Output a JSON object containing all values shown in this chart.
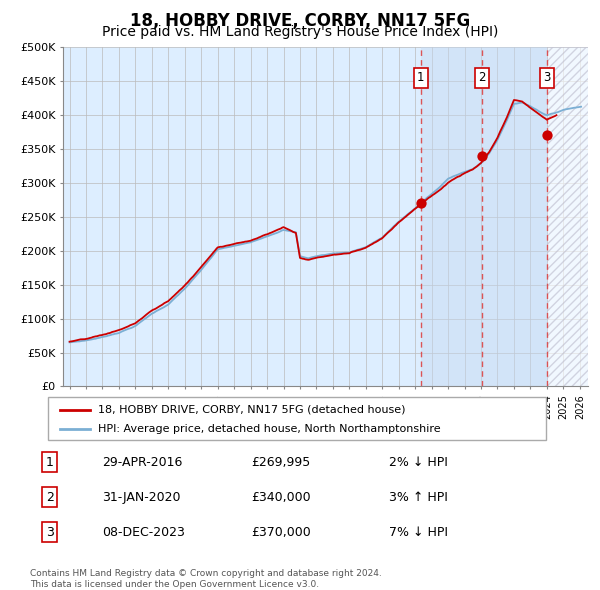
{
  "title": "18, HOBBY DRIVE, CORBY, NN17 5FG",
  "subtitle": "Price paid vs. HM Land Registry's House Price Index (HPI)",
  "title_fontsize": 12,
  "subtitle_fontsize": 10,
  "ylim": [
    0,
    500000
  ],
  "yticks": [
    0,
    50000,
    100000,
    150000,
    200000,
    250000,
    300000,
    350000,
    400000,
    450000,
    500000
  ],
  "ytick_labels": [
    "£0",
    "£50K",
    "£100K",
    "£150K",
    "£200K",
    "£250K",
    "£300K",
    "£350K",
    "£400K",
    "£450K",
    "£500K"
  ],
  "x_start_year": 1995,
  "x_end_year": 2026,
  "hpi_color": "#7bafd4",
  "price_color": "#cc0000",
  "purchase_prices": [
    269995,
    340000,
    370000
  ],
  "purchase_labels": [
    "1",
    "2",
    "3"
  ],
  "purchase_year_decimals": [
    2016.33,
    2020.08,
    2024.0
  ],
  "legend_label_price": "18, HOBBY DRIVE, CORBY, NN17 5FG (detached house)",
  "legend_label_hpi": "HPI: Average price, detached house, North Northamptonshire",
  "table_data": [
    [
      "1",
      "29-APR-2016",
      "£269,995",
      "2% ↓ HPI"
    ],
    [
      "2",
      "31-JAN-2020",
      "£340,000",
      "3% ↑ HPI"
    ],
    [
      "3",
      "08-DEC-2023",
      "£370,000",
      "7% ↓ HPI"
    ]
  ],
  "footer_text": "Contains HM Land Registry data © Crown copyright and database right 2024.\nThis data is licensed under the Open Government Licence v3.0.",
  "background_color": "#ddeeff",
  "grid_color": "#bbbbbb",
  "dashed_line_color": "#dd4444",
  "hpi_key_years": [
    1995,
    1996,
    1997,
    1998,
    1999,
    2000,
    2001,
    2002,
    2003,
    2004,
    2005,
    2006,
    2007,
    2008,
    2008.75,
    2009,
    2009.5,
    2010,
    2011,
    2012,
    2013,
    2014,
    2015,
    2016,
    2016.5,
    2017,
    2017.5,
    2018,
    2018.5,
    2019,
    2019.5,
    2020,
    2020.5,
    2021,
    2021.5,
    2022,
    2022.5,
    2023,
    2023.5,
    2024,
    2024.5,
    2025,
    2026
  ],
  "hpi_key_vals": [
    65000,
    68000,
    73000,
    80000,
    90000,
    108000,
    122000,
    145000,
    172000,
    202000,
    207000,
    212000,
    222000,
    232000,
    228000,
    193000,
    190000,
    193000,
    197000,
    199000,
    207000,
    221000,
    244000,
    264000,
    275000,
    285000,
    295000,
    307000,
    313000,
    318000,
    322000,
    330000,
    345000,
    365000,
    390000,
    418000,
    420000,
    415000,
    408000,
    402000,
    405000,
    410000,
    415000
  ],
  "price_offset_key_years": [
    1995,
    2000,
    2005,
    2008,
    2009,
    2012,
    2016,
    2018,
    2020,
    2022,
    2023,
    2024,
    2024.5
  ],
  "price_offset_vals": [
    1000,
    2000,
    3000,
    4000,
    -2000,
    -1000,
    2000,
    -3000,
    2000,
    5000,
    -3000,
    -8000,
    -5000
  ]
}
